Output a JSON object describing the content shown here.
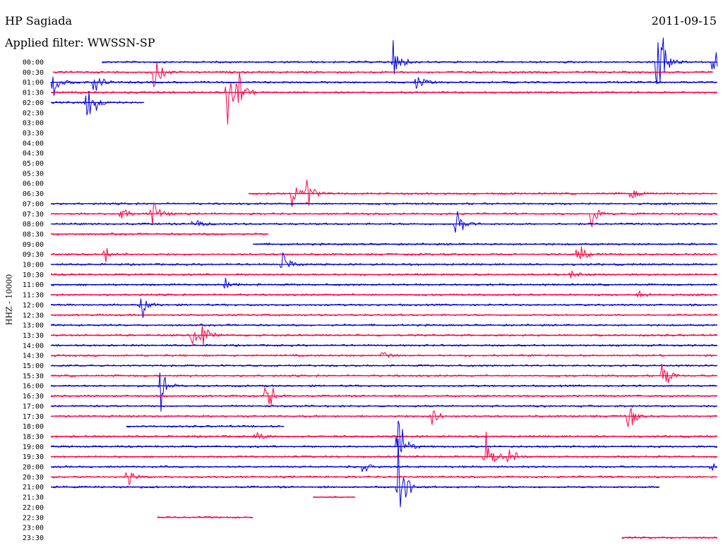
{
  "header": {
    "station": "HP Sagiada",
    "date": "2011-09-15",
    "filter": "Applied filter: WWSSN-SP",
    "channel": "HHZ - 10000"
  },
  "colors": {
    "trace_a": "#0000e0",
    "trace_b": "#ff0044"
  },
  "chart_data": {
    "type": "line",
    "title": "HP Sagiada",
    "subtitle": "Applied filter: WWSSN-SP",
    "ylabel": "HHZ - 10000",
    "xlabel": "",
    "grid": false,
    "x_range_minutes": [
      0,
      30
    ],
    "series": [
      {
        "label": "00:00",
        "start": 2.3,
        "end": 30,
        "events": [
          [
            15.4,
            3
          ],
          [
            27.3,
            9
          ],
          [
            29.8,
            3
          ]
        ]
      },
      {
        "label": "00:30",
        "start": 0.1,
        "end": 29.8,
        "events": [
          [
            4.6,
            4
          ]
        ]
      },
      {
        "label": "01:00",
        "start": 0,
        "end": 30,
        "events": [
          [
            0.1,
            3
          ],
          [
            1.9,
            2
          ],
          [
            16.4,
            2
          ]
        ]
      },
      {
        "label": "01:30",
        "start": 0,
        "end": 30,
        "events": [
          [
            7.9,
            5
          ],
          [
            8.4,
            3
          ]
        ]
      },
      {
        "label": "02:00",
        "start": 0,
        "end": 4.2,
        "events": [
          [
            1.6,
            6
          ]
        ]
      },
      {
        "label": "02:30",
        "empty": true
      },
      {
        "label": "03:00",
        "empty": true
      },
      {
        "label": "03:30",
        "empty": true
      },
      {
        "label": "04:00",
        "empty": true
      },
      {
        "label": "04:30",
        "empty": true
      },
      {
        "label": "05:00",
        "empty": true
      },
      {
        "label": "05:30",
        "empty": true
      },
      {
        "label": "06:00",
        "empty": true
      },
      {
        "label": "06:30",
        "start": 8.9,
        "end": 30,
        "events": [
          [
            10.8,
            3
          ],
          [
            11.5,
            2
          ],
          [
            26.1,
            1
          ]
        ]
      },
      {
        "label": "07:00",
        "start": 0,
        "end": 30,
        "events": []
      },
      {
        "label": "07:30",
        "start": 0,
        "end": 30,
        "events": [
          [
            3.1,
            2
          ],
          [
            4.5,
            3
          ],
          [
            24.3,
            2
          ]
        ]
      },
      {
        "label": "08:00",
        "start": 0,
        "end": 30,
        "events": [
          [
            6.4,
            1
          ],
          [
            18.2,
            3
          ]
        ]
      },
      {
        "label": "08:30",
        "start": 0,
        "end": 9.8,
        "events": []
      },
      {
        "label": "09:00",
        "start": 9.1,
        "end": 30,
        "events": []
      },
      {
        "label": "09:30",
        "start": 0,
        "end": 30,
        "events": [
          [
            2.4,
            2
          ],
          [
            23.7,
            2
          ]
        ]
      },
      {
        "label": "10:00",
        "start": 0,
        "end": 30,
        "events": [
          [
            10.4,
            2
          ]
        ]
      },
      {
        "label": "10:30",
        "start": 0,
        "end": 30,
        "events": [
          [
            23.4,
            1
          ]
        ]
      },
      {
        "label": "11:00",
        "start": 0,
        "end": 30,
        "events": [
          [
            7.8,
            1
          ]
        ]
      },
      {
        "label": "11:30",
        "start": 0,
        "end": 30,
        "events": [
          [
            26.4,
            1
          ]
        ]
      },
      {
        "label": "12:00",
        "start": 0,
        "end": 30,
        "events": [
          [
            4.0,
            3
          ]
        ]
      },
      {
        "label": "12:30",
        "start": 0,
        "end": 30,
        "events": []
      },
      {
        "label": "13:00",
        "start": 0,
        "end": 30,
        "events": []
      },
      {
        "label": "13:30",
        "start": 0,
        "end": 30,
        "events": [
          [
            6.3,
            2
          ],
          [
            6.8,
            2
          ]
        ]
      },
      {
        "label": "14:00",
        "start": 0,
        "end": 30,
        "events": []
      },
      {
        "label": "14:30",
        "start": 0,
        "end": 30,
        "events": [
          [
            14.9,
            1
          ]
        ]
      },
      {
        "label": "15:00",
        "start": 0,
        "end": 30,
        "events": []
      },
      {
        "label": "15:30",
        "start": 0,
        "end": 30,
        "events": [
          [
            27.5,
            3
          ]
        ]
      },
      {
        "label": "16:00",
        "start": 0,
        "end": 30,
        "events": [
          [
            4.9,
            4
          ]
        ]
      },
      {
        "label": "16:30",
        "start": 0,
        "end": 30,
        "events": [
          [
            9.7,
            3
          ]
        ]
      },
      {
        "label": "17:00",
        "start": 0,
        "end": 30,
        "events": []
      },
      {
        "label": "17:30",
        "start": 0,
        "end": 30,
        "events": [
          [
            17.1,
            2
          ],
          [
            25.9,
            3
          ]
        ]
      },
      {
        "label": "18:00",
        "start": 3.4,
        "end": 10.5,
        "events": []
      },
      {
        "label": "18:30",
        "start": 0,
        "end": 30,
        "events": [
          [
            9.2,
            1
          ]
        ]
      },
      {
        "label": "19:00",
        "start": 0,
        "end": 30,
        "events": [
          [
            15.6,
            5
          ]
        ]
      },
      {
        "label": "19:30",
        "start": 0,
        "end": 30,
        "events": [
          [
            19.5,
            5
          ],
          [
            20.6,
            2
          ]
        ]
      },
      {
        "label": "20:00",
        "start": 0,
        "end": 30,
        "events": [
          [
            14.0,
            1
          ],
          [
            29.7,
            1
          ]
        ]
      },
      {
        "label": "20:30",
        "start": 0,
        "end": 30,
        "events": [
          [
            3.4,
            2
          ]
        ]
      },
      {
        "label": "21:00",
        "start": 0,
        "end": 27.4,
        "events": [
          [
            15.6,
            8
          ]
        ]
      },
      {
        "label": "21:30",
        "start": 11.8,
        "end": 13.7,
        "events": []
      },
      {
        "label": "22:00",
        "empty": true
      },
      {
        "label": "22:30",
        "start": 4.8,
        "end": 9.1,
        "events": []
      },
      {
        "label": "23:00",
        "empty": true
      },
      {
        "label": "23:30",
        "start": 25.7,
        "end": 30,
        "events": []
      }
    ]
  }
}
